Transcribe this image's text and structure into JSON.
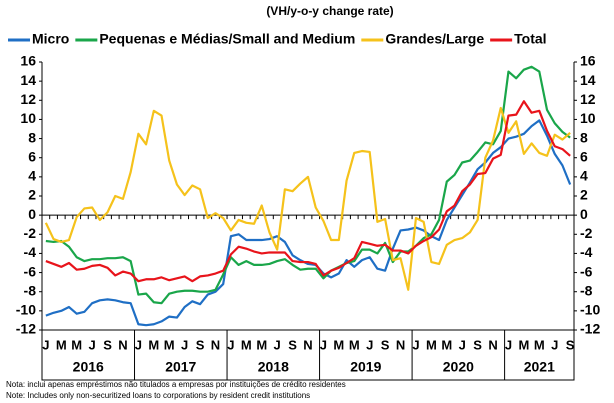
{
  "chart_data": {
    "type": "line",
    "title": "(VH/y-o-y change rate)",
    "categories": [
      "J",
      null,
      "M",
      null,
      "M",
      null,
      "J",
      null,
      "S",
      null,
      "N",
      null,
      "J",
      null,
      "M",
      null,
      "M",
      null,
      "J",
      null,
      "S",
      null,
      "N",
      null,
      "J",
      null,
      "M",
      null,
      "M",
      null,
      "J",
      null,
      "S",
      null,
      "N",
      null,
      "J",
      null,
      "M",
      null,
      "M",
      null,
      "J",
      null,
      "S",
      null,
      "N",
      null,
      "J",
      null,
      "M",
      null,
      "M",
      null,
      "J",
      null,
      "S",
      null,
      "N",
      null,
      "J",
      null,
      "M",
      null,
      "M",
      null,
      "J",
      null,
      "S"
    ],
    "year_labels": [
      "2016",
      "2017",
      "2018",
      "2019",
      "2020",
      "2021"
    ],
    "series": [
      {
        "name": "Micro",
        "color": "#1f6fc5",
        "values": [
          -10.5,
          -10.2,
          -10,
          -9.6,
          -10.3,
          -10.1,
          -9.2,
          -8.9,
          -8.8,
          -8.9,
          -9.1,
          -9.2,
          -11.4,
          -11.5,
          -11.4,
          -11.1,
          -10.6,
          -10.7,
          -9.6,
          -9,
          -9.3,
          -8.3,
          -8,
          -7.2,
          -2.2,
          -2,
          -2.6,
          -2.6,
          -2.6,
          -2.5,
          -2.2,
          -2.8,
          -4.2,
          -4.7,
          -5.1,
          -5.2,
          -6.1,
          -6.5,
          -6.1,
          -4.7,
          -5.4,
          -4.7,
          -4.4,
          -5.6,
          -5.8,
          -3.5,
          -1.6,
          -1.5,
          -1.3,
          -1.6,
          -2.2,
          -2.6,
          -0.5,
          0.8,
          2.1,
          3.4,
          4.8,
          5.5,
          6.5,
          7.1,
          8,
          8.2,
          8.5,
          9.3,
          9.9,
          8.3,
          6.4,
          5.2,
          3.2
        ]
      },
      {
        "name": "Pequenas e Médias/Small and Medium",
        "color": "#1aa64a",
        "values": [
          -2.7,
          -2.8,
          -2.7,
          -3.3,
          -4.4,
          -4.8,
          -4.6,
          -4.6,
          -4.5,
          -4.5,
          -4.4,
          -4.8,
          -8.3,
          -8.2,
          -9.1,
          -9.2,
          -8.2,
          -8,
          -7.9,
          -7.9,
          -8,
          -8,
          -7.8,
          -6.2,
          -4.4,
          -5.2,
          -4.8,
          -5.2,
          -5.2,
          -5.1,
          -4.8,
          -4.6,
          -5.2,
          -5.7,
          -5.6,
          -5.6,
          -6.6,
          -5.8,
          -5.4,
          -5,
          -4.8,
          -3.6,
          -3.6,
          -4,
          -2.9,
          -4.9,
          -3.8,
          -3.8,
          -3.2,
          -2.4,
          -2,
          -0.5,
          3.5,
          4.2,
          5.5,
          5.7,
          6.6,
          7.6,
          7.4,
          8.8,
          15,
          14.3,
          15.2,
          15.5,
          15,
          11,
          9.6,
          8.7,
          8.1
        ]
      },
      {
        "name": "Grandes/Large",
        "color": "#f5c21b",
        "values": [
          -0.8,
          -2.5,
          -2.8,
          -2.6,
          -0.2,
          0.7,
          0.8,
          -0.5,
          0.3,
          2,
          1.7,
          4.5,
          8.5,
          7.4,
          10.9,
          10.4,
          5.7,
          3.2,
          2.1,
          3.1,
          2.7,
          -0.3,
          0.2,
          -0.3,
          -1.6,
          -0.5,
          -0.8,
          -0.9,
          1,
          -1.8,
          -3.6,
          2.7,
          2.5,
          3.3,
          4,
          0.8,
          -0.6,
          -2.6,
          -2.6,
          3.6,
          6.5,
          6.7,
          6.6,
          -0.7,
          -0.4,
          -4.7,
          -4.5,
          -7.8,
          -0.3,
          -0.7,
          -4.9,
          -5.1,
          -3.1,
          -2.6,
          -2.4,
          -1.8,
          -0.5,
          6,
          7.8,
          11.2,
          8.6,
          9.8,
          6.4,
          7.5,
          6.5,
          6.2,
          8.4,
          7.9,
          8.6
        ]
      },
      {
        "name": "Total",
        "color": "#e8141b",
        "values": [
          -4.8,
          -5.1,
          -5.4,
          -5,
          -5.7,
          -5.6,
          -5.3,
          -5.2,
          -5.5,
          -6.3,
          -5.9,
          -6.1,
          -6.9,
          -6.7,
          -6.7,
          -6.5,
          -6.8,
          -6.6,
          -6.4,
          -6.9,
          -6.4,
          -6.3,
          -6.1,
          -5.8,
          -4.1,
          -3.3,
          -3.5,
          -3.8,
          -4,
          -3.9,
          -3.9,
          -3.9,
          -4.8,
          -4.9,
          -4.9,
          -5.1,
          -6.3,
          -5.8,
          -5.5,
          -5,
          -4.5,
          -2.8,
          -3,
          -3.2,
          -3.1,
          -3.7,
          -3.7,
          -4,
          -3.2,
          -2.7,
          -2.3,
          -1.5,
          0.4,
          1,
          2.5,
          3.2,
          4.3,
          4.4,
          5.9,
          6.3,
          10.4,
          10.5,
          11.9,
          10.7,
          10.9,
          8.8,
          7.2,
          6.9,
          6.2
        ]
      }
    ],
    "ylim": [
      -12,
      16
    ],
    "yticks": [
      -12,
      -10,
      -8,
      -6,
      -4,
      -2,
      0,
      2,
      4,
      6,
      8,
      10,
      12,
      14,
      16
    ],
    "y2lim": [
      -12,
      16
    ],
    "y2ticks": [
      -12,
      -10,
      -8,
      -6,
      -4,
      -2,
      0,
      2,
      4,
      6,
      8,
      10,
      12,
      14,
      16
    ],
    "notes": [
      "Nota: inclui apenas empréstimos não titulados a empresas por instituições de crédito residentes",
      "Note: Includes only non-securitized loans to corporations by resident credit institutions"
    ]
  }
}
